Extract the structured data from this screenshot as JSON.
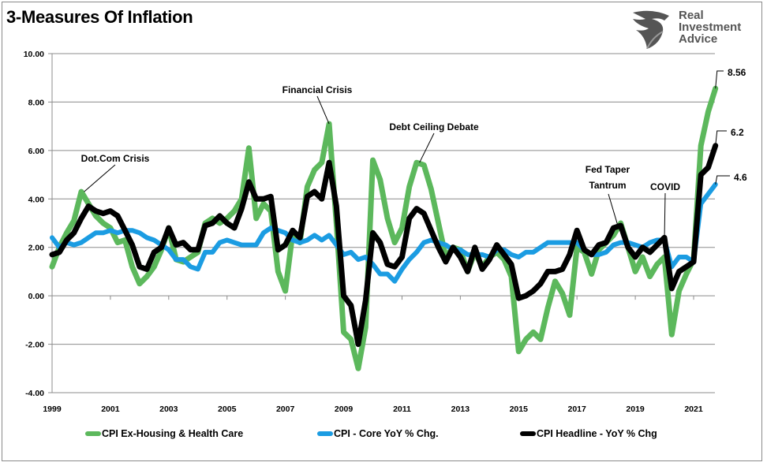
{
  "page": {
    "title": "3-Measures Of Inflation"
  },
  "logo": {
    "line1": "Real",
    "line2": "Investment",
    "line3": "Advice",
    "icon": "eagle-shield-icon"
  },
  "chart_data": {
    "type": "line",
    "title": "3-Measures Of Inflation",
    "xlabel": "",
    "ylabel": "",
    "xlim": [
      1999.0,
      2021.8
    ],
    "ylim": [
      -4,
      10
    ],
    "yticks": [
      -4,
      -2,
      0,
      2,
      4,
      6,
      8,
      10
    ],
    "ytick_labels": [
      "-4.00",
      "-2.00",
      "0.00",
      "2.00",
      "4.00",
      "6.00",
      "8.00",
      "10.00"
    ],
    "xticks": [
      1999,
      2001,
      2003,
      2005,
      2007,
      2009,
      2011,
      2013,
      2015,
      2017,
      2019,
      2021
    ],
    "xtick_labels": [
      "1999",
      "2001",
      "2003",
      "2005",
      "2007",
      "2009",
      "2011",
      "2013",
      "2015",
      "2017",
      "2019",
      "2021"
    ],
    "grid": true,
    "legend_position": "bottom",
    "x": [
      1999.0,
      1999.25,
      1999.5,
      1999.75,
      2000.0,
      2000.25,
      2000.5,
      2000.75,
      2001.0,
      2001.25,
      2001.5,
      2001.75,
      2002.0,
      2002.25,
      2002.5,
      2002.75,
      2003.0,
      2003.25,
      2003.5,
      2003.75,
      2004.0,
      2004.25,
      2004.5,
      2004.75,
      2005.0,
      2005.25,
      2005.5,
      2005.75,
      2006.0,
      2006.25,
      2006.5,
      2006.75,
      2007.0,
      2007.25,
      2007.5,
      2007.75,
      2008.0,
      2008.25,
      2008.5,
      2008.75,
      2009.0,
      2009.25,
      2009.5,
      2009.75,
      2010.0,
      2010.25,
      2010.5,
      2010.75,
      2011.0,
      2011.25,
      2011.5,
      2011.75,
      2012.0,
      2012.25,
      2012.5,
      2012.75,
      2013.0,
      2013.25,
      2013.5,
      2013.75,
      2014.0,
      2014.25,
      2014.5,
      2014.75,
      2015.0,
      2015.25,
      2015.5,
      2015.75,
      2016.0,
      2016.25,
      2016.5,
      2016.75,
      2017.0,
      2017.25,
      2017.5,
      2017.75,
      2018.0,
      2018.25,
      2018.5,
      2018.75,
      2019.0,
      2019.25,
      2019.5,
      2019.75,
      2020.0,
      2020.25,
      2020.5,
      2020.75,
      2021.0,
      2021.25,
      2021.5,
      2021.75
    ],
    "series": [
      {
        "name": "CPI Ex-Housing & Health Care",
        "color": "#5cb85c",
        "values": [
          1.2,
          2.0,
          2.6,
          3.1,
          4.3,
          3.8,
          3.3,
          3.0,
          2.8,
          2.2,
          2.3,
          1.2,
          0.5,
          0.8,
          1.2,
          1.9,
          2.8,
          1.5,
          1.4,
          1.6,
          1.8,
          3.0,
          3.2,
          3.0,
          3.2,
          3.5,
          4.0,
          6.1,
          3.2,
          3.8,
          3.5,
          1.0,
          0.2,
          2.6,
          2.2,
          4.5,
          5.2,
          5.5,
          7.1,
          3.0,
          -1.5,
          -1.8,
          -3.0,
          -1.3,
          5.6,
          4.8,
          3.2,
          2.2,
          2.8,
          4.5,
          5.5,
          5.4,
          4.4,
          3.0,
          1.6,
          2.0,
          1.9,
          1.0,
          1.8,
          1.2,
          1.6,
          1.8,
          1.5,
          0.8,
          -2.3,
          -1.8,
          -1.5,
          -1.8,
          -0.5,
          0.6,
          0.1,
          -0.8,
          2.0,
          1.8,
          0.9,
          1.9,
          2.2,
          2.5,
          3.0,
          2.0,
          1.0,
          1.6,
          0.8,
          1.3,
          1.6,
          -1.6,
          0.2,
          0.9,
          1.5,
          6.2,
          7.6,
          8.56
        ]
      },
      {
        "name": "CPI - Core YoY % Chg.",
        "color": "#1b9ce2",
        "values": [
          2.4,
          2.0,
          2.2,
          2.1,
          2.2,
          2.4,
          2.6,
          2.6,
          2.7,
          2.6,
          2.7,
          2.7,
          2.6,
          2.4,
          2.3,
          2.1,
          1.9,
          1.5,
          1.5,
          1.2,
          1.1,
          1.8,
          1.8,
          2.2,
          2.3,
          2.2,
          2.1,
          2.1,
          2.1,
          2.6,
          2.8,
          2.7,
          2.6,
          2.3,
          2.2,
          2.3,
          2.5,
          2.3,
          2.5,
          2.1,
          1.7,
          1.8,
          1.5,
          1.6,
          1.3,
          0.9,
          0.9,
          0.6,
          1.1,
          1.5,
          1.8,
          2.2,
          2.3,
          2.2,
          2.1,
          1.9,
          1.9,
          1.7,
          1.7,
          1.7,
          1.6,
          1.9,
          1.9,
          1.7,
          1.6,
          1.8,
          1.8,
          2.0,
          2.2,
          2.2,
          2.2,
          2.2,
          2.2,
          1.9,
          1.7,
          1.7,
          1.8,
          2.1,
          2.2,
          2.2,
          2.1,
          2.0,
          2.2,
          2.3,
          2.3,
          1.2,
          1.6,
          1.6,
          1.4,
          3.8,
          4.2,
          4.6
        ]
      },
      {
        "name": "CPI Headline - YoY % Chg",
        "color": "#000000",
        "values": [
          1.7,
          1.8,
          2.3,
          2.6,
          3.2,
          3.7,
          3.5,
          3.4,
          3.5,
          3.3,
          2.7,
          2.1,
          1.2,
          1.1,
          1.8,
          2.0,
          2.8,
          2.1,
          2.2,
          1.9,
          1.9,
          2.9,
          3.0,
          3.3,
          3.0,
          2.8,
          3.6,
          4.7,
          4.0,
          4.0,
          4.1,
          1.9,
          2.1,
          2.7,
          2.4,
          4.1,
          4.3,
          4.0,
          5.5,
          3.7,
          0.0,
          -0.4,
          -2.0,
          -0.2,
          2.6,
          2.2,
          1.3,
          1.2,
          1.6,
          3.2,
          3.6,
          3.4,
          2.7,
          2.0,
          1.4,
          2.0,
          1.6,
          1.0,
          2.0,
          1.1,
          1.5,
          2.1,
          1.7,
          1.3,
          -0.1,
          0.0,
          0.2,
          0.5,
          1.0,
          1.0,
          1.1,
          1.7,
          2.7,
          1.9,
          1.7,
          2.1,
          2.2,
          2.8,
          2.9,
          2.0,
          1.6,
          2.0,
          1.8,
          2.1,
          2.4,
          0.3,
          1.0,
          1.2,
          1.4,
          5.0,
          5.3,
          6.2
        ]
      }
    ],
    "annotations": [
      {
        "text": "Dot.Com Crisis",
        "x": 2000.1,
        "y": 4.3
      },
      {
        "text": "Financial Crisis",
        "x": 2008.5,
        "y": 7.1
      },
      {
        "text": "Debt Ceiling Debate",
        "x": 2011.6,
        "y": 5.5
      },
      {
        "text": "Fed Taper Tantrum",
        "x": 2018.4,
        "y": 2.9
      },
      {
        "text": "COVID",
        "x": 2020.0,
        "y": 2.4
      },
      {
        "text": "8.56",
        "x": 2021.75,
        "y": 8.56
      },
      {
        "text": "6.2",
        "x": 2021.75,
        "y": 6.2
      },
      {
        "text": "4.6",
        "x": 2021.75,
        "y": 4.6
      }
    ]
  }
}
